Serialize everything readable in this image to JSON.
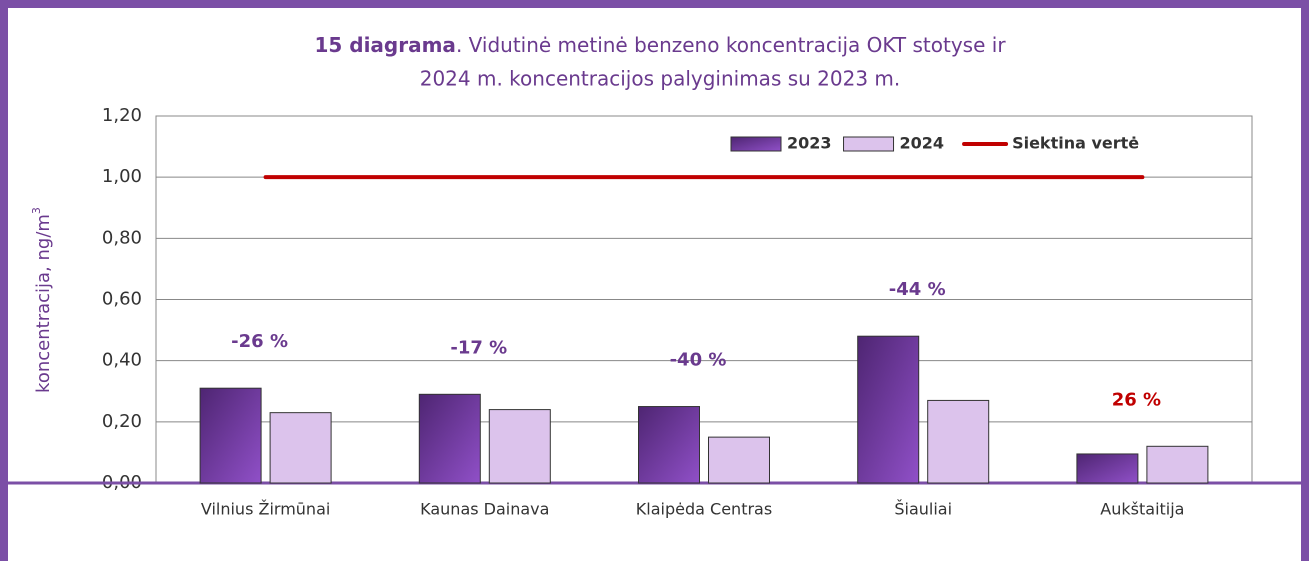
{
  "chart_data": {
    "type": "bar",
    "title_bold": "15 diagrama",
    "title_line1": ". Vidutinė metinė benzeno koncentracija OKT stotyse ir",
    "title_line2": "2024 m. koncentracijos palyginimas su 2023 m.",
    "y_label": "koncentracija, ng/m",
    "y_label_sup": "3",
    "categories": [
      "Vilnius Žirmūnai",
      "Kaunas Dainava",
      "Klaipėda Centras",
      "Šiauliai",
      "Aukštaitija"
    ],
    "series": [
      {
        "name": "2023",
        "type": "bar",
        "color": "#6a3597",
        "values": [
          0.31,
          0.29,
          0.25,
          0.48,
          0.095
        ]
      },
      {
        "name": "2024",
        "type": "bar",
        "color": "#dcc3ec",
        "values": [
          0.23,
          0.24,
          0.15,
          0.27,
          0.12
        ]
      },
      {
        "name": "Siektina vertė",
        "type": "line",
        "color": "#c00000",
        "values": [
          1,
          1,
          1,
          1,
          1
        ]
      }
    ],
    "annotations": [
      {
        "text": "-26 %",
        "color": "#6a3a8e"
      },
      {
        "text": "-17 %",
        "color": "#6a3a8e"
      },
      {
        "text": "-40 %",
        "color": "#6a3a8e"
      },
      {
        "text": "-44 %",
        "color": "#6a3a8e"
      },
      {
        "text": "26 %",
        "color": "#c00000"
      }
    ],
    "ylim": [
      0,
      1.2
    ],
    "yticks": [
      {
        "value": 0,
        "label": "0,00"
      },
      {
        "value": 0.2,
        "label": "0,20"
      },
      {
        "value": 0.4,
        "label": "0,40"
      },
      {
        "value": 0.6,
        "label": "0,60"
      },
      {
        "value": 0.8,
        "label": "0,80"
      },
      {
        "value": 1,
        "label": "1,00"
      },
      {
        "value": 1.2,
        "label": "1,20"
      }
    ],
    "grid": true,
    "legend": "top-right"
  }
}
